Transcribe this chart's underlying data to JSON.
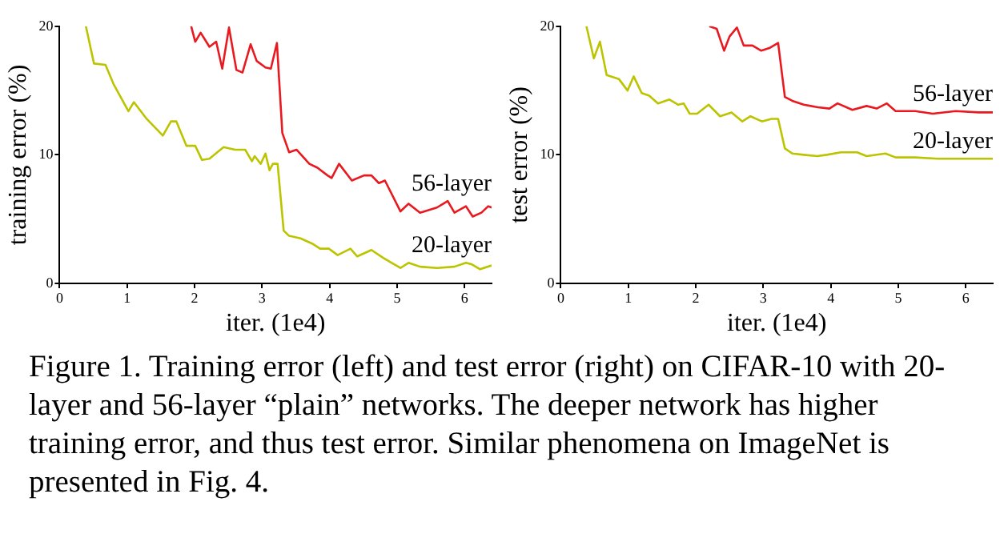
{
  "chart_data": [
    {
      "type": "line",
      "xlabel": "iter. (1e4)",
      "ylabel": "training error (%)",
      "xlim": [
        0,
        6.4
      ],
      "xticks": [
        0,
        1,
        2,
        3,
        4,
        5,
        6
      ],
      "ylim": [
        0,
        20
      ],
      "yticks": [
        0,
        10,
        20
      ],
      "grid": false,
      "legend": false,
      "marker": "none",
      "series": [
        {
          "name": "56-layer",
          "color": "#e8191f",
          "x": [
            1.95,
            2.01,
            2.09,
            2.22,
            2.32,
            2.41,
            2.51,
            2.62,
            2.71,
            2.83,
            2.92,
            3.05,
            3.13,
            3.22,
            3.3,
            3.4,
            3.51,
            3.7,
            3.82,
            3.97,
            4.03,
            4.14,
            4.33,
            4.51,
            4.62,
            4.73,
            4.82,
            5.05,
            5.17,
            5.34,
            5.59,
            5.75,
            5.85,
            6.02,
            6.12,
            6.25,
            6.35,
            6.4
          ],
          "values": [
            20,
            18.8,
            19.5,
            18.4,
            18.8,
            16.7,
            19.9,
            16.6,
            16.4,
            18.6,
            17.3,
            16.8,
            16.7,
            18.7,
            11.7,
            10.2,
            10.4,
            9.3,
            9.0,
            8.4,
            8.2,
            9.3,
            8.0,
            8.4,
            8.4,
            7.8,
            8.0,
            5.6,
            6.2,
            5.5,
            5.9,
            6.4,
            5.5,
            6.0,
            5.2,
            5.5,
            6.0,
            5.9
          ]
        },
        {
          "name": "20-layer",
          "color": "#bcc400",
          "x": [
            0.39,
            0.51,
            0.68,
            0.8,
            1.02,
            1.1,
            1.29,
            1.53,
            1.65,
            1.73,
            1.88,
            2.01,
            2.11,
            2.22,
            2.43,
            2.6,
            2.75,
            2.85,
            2.89,
            2.98,
            3.05,
            3.11,
            3.16,
            3.23,
            3.32,
            3.4,
            3.57,
            3.74,
            3.86,
            3.99,
            4.12,
            4.31,
            4.41,
            4.62,
            4.79,
            4.92,
            5.05,
            5.17,
            5.34,
            5.59,
            5.85,
            6.02,
            6.1,
            6.23,
            6.4
          ],
          "values": [
            20,
            17.1,
            17.0,
            15.5,
            13.4,
            14.1,
            12.8,
            11.5,
            12.6,
            12.6,
            10.7,
            10.7,
            9.6,
            9.7,
            10.6,
            10.4,
            10.4,
            9.5,
            9.9,
            9.3,
            10.1,
            8.8,
            9.3,
            9.3,
            4.1,
            3.7,
            3.5,
            3.1,
            2.7,
            2.7,
            2.2,
            2.7,
            2.1,
            2.6,
            2.0,
            1.6,
            1.2,
            1.6,
            1.3,
            1.2,
            1.3,
            1.6,
            1.5,
            1.1,
            1.4
          ]
        }
      ],
      "annotations": [
        "Figure 1. Training error (left) and test error (right) on CIFAR-10 with 20-layer and 56-layer “plain” networks. The deeper network has higher training error, and thus test error. Similar phenomena on ImageNet is presented in Fig. 4."
      ]
    },
    {
      "type": "line",
      "xlabel": "iter. (1e4)",
      "ylabel": "test error (%)",
      "xlim": [
        0,
        6.4
      ],
      "xticks": [
        0,
        1,
        2,
        3,
        4,
        5,
        6
      ],
      "ylim": [
        0,
        20
      ],
      "yticks": [
        0,
        10,
        20
      ],
      "grid": false,
      "legend": false,
      "marker": "none",
      "series": [
        {
          "name": "56-layer",
          "color": "#e8191f",
          "x": [
            2.2,
            2.31,
            2.42,
            2.5,
            2.61,
            2.71,
            2.84,
            2.97,
            3.09,
            3.22,
            3.32,
            3.43,
            3.6,
            3.81,
            3.98,
            4.1,
            4.32,
            4.53,
            4.68,
            4.83,
            4.96,
            5.25,
            5.51,
            5.85,
            6.19,
            6.4
          ],
          "values": [
            20,
            19.8,
            18.1,
            19.2,
            19.9,
            18.5,
            18.5,
            18.1,
            18.3,
            18.7,
            14.5,
            14.2,
            13.9,
            13.7,
            13.6,
            14.0,
            13.5,
            13.8,
            13.6,
            14.0,
            13.4,
            13.4,
            13.2,
            13.4,
            13.3,
            13.3
          ]
        },
        {
          "name": "20-layer",
          "color": "#bcc400",
          "x": [
            0.38,
            0.49,
            0.58,
            0.68,
            0.86,
            0.99,
            1.08,
            1.2,
            1.31,
            1.44,
            1.61,
            1.74,
            1.82,
            1.91,
            2.02,
            2.19,
            2.36,
            2.53,
            2.69,
            2.81,
            2.98,
            3.12,
            3.22,
            3.32,
            3.43,
            3.6,
            3.8,
            3.94,
            4.15,
            4.39,
            4.53,
            4.81,
            4.96,
            5.25,
            5.59,
            6.02,
            6.4
          ],
          "values": [
            20,
            17.5,
            18.8,
            16.2,
            15.9,
            15.0,
            16.1,
            14.8,
            14.6,
            14.0,
            14.3,
            13.9,
            14.0,
            13.2,
            13.2,
            13.9,
            13.0,
            13.3,
            12.6,
            13.0,
            12.6,
            12.8,
            12.8,
            10.5,
            10.1,
            10.0,
            9.9,
            10.0,
            10.2,
            10.2,
            9.9,
            10.1,
            9.8,
            9.8,
            9.7,
            9.7,
            9.7
          ]
        }
      ]
    }
  ]
}
